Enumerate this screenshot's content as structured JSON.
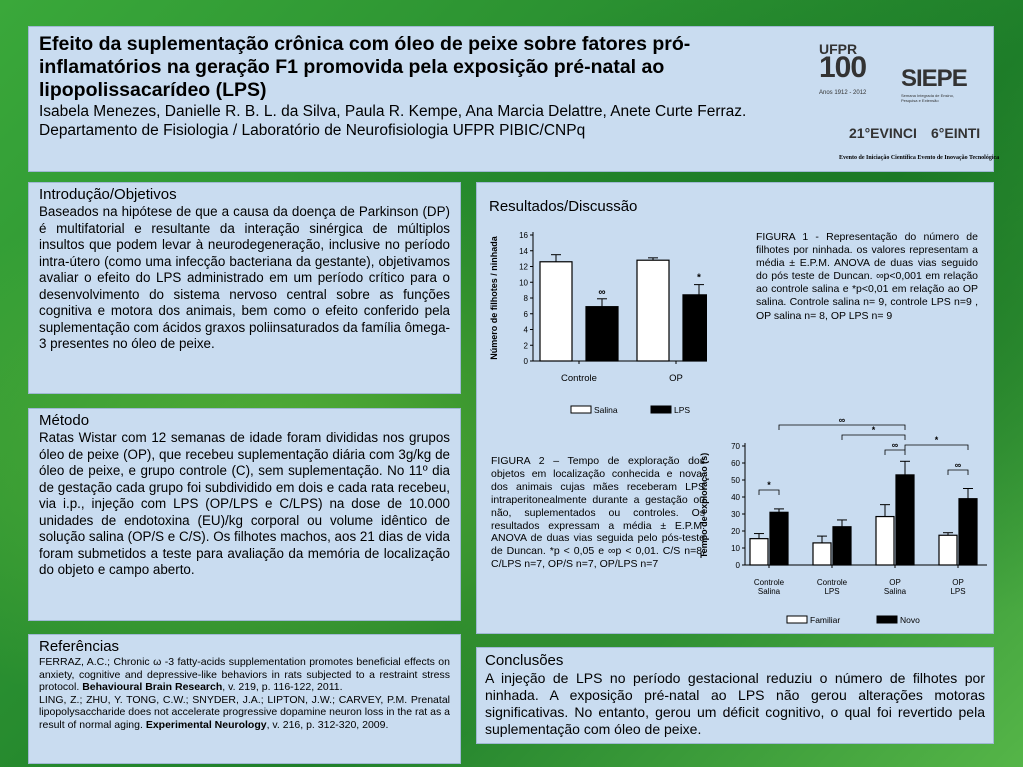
{
  "header": {
    "title": "Efeito da suplementação crônica com óleo de peixe sobre fatores pró-inflamatórios na geração F1 promovida pela exposição pré-natal ao lipopolissacarídeo (LPS)",
    "authors": "Isabela Menezes, Danielle R. B. L. da Silva, Paula R. Kempe, Ana Marcia Delattre, Anete Curte Ferraz. Departamento de Fisiologia / Laboratório de Neurofisiologia UFPR PIBIC/CNPq"
  },
  "logos": {
    "ufpr": "UFPR",
    "ufpr_100": "100",
    "ufpr_sub": "Anos 1912 - 2012",
    "siepe": "SIEPE",
    "siepe_sub": "Semana Integrada de Ensino, Pesquisa e Extensão",
    "evinci": "21°EVINCI",
    "einti": "6°EINTI",
    "caption": "Evento de Iniciação Científica  Evento de Inovação Tecnológica"
  },
  "intro": {
    "title": "Introdução/Objetivos",
    "text": "Baseados na hipótese de que a causa da doença de Parkinson (DP) é multifatorial e resultante da interação sinérgica de múltiplos insultos que podem levar à neurodegeneração, inclusive no período intra-útero (como uma infecção bacteriana da gestante), objetivamos avaliar o efeito do LPS administrado em um período crítico para o desenvolvimento do sistema nervoso central sobre as funções cognitiva e motora dos animais, bem como o efeito conferido pela suplementação com ácidos graxos poliinsaturados da família ômega-3 presentes no óleo de peixe."
  },
  "metodo": {
    "title": "Método",
    "text": "Ratas Wistar com 12 semanas de idade foram divididas nos grupos óleo de peixe (OP), que recebeu suplementação diária com 3g/kg de óleo de peixe, e grupo controle (C), sem suplementação. No 11º dia de gestação cada grupo foi subdividido em dois e cada rata recebeu, via i.p., injeção com LPS (OP/LPS e C/LPS) na dose de 10.000 unidades de endotoxina (EU)/kg corporal ou volume idêntico de solução salina (OP/S e C/S). Os filhotes machos, aos 21 dias de vida foram submetidos a teste para avaliação da memória de localização do objeto e campo aberto."
  },
  "refs": {
    "title": "Referências",
    "ref1_a": "FERRAZ, A.C.; Chronic ω -3 fatty-acids supplementation promotes beneficial effects on anxiety, cognitive and depressive-like behaviors in rats subjected to a restraint stress protocol. ",
    "ref1_journal": "Behavioural Brain Research",
    "ref1_b": ", v. 219, p. 116-122, 2011.",
    "ref2_a": "LING, Z.; ZHU, Y. TONG, C.W.; SNYDER, J.A.; LIPTON, J.W.; CARVEY, P.M. Prenatal lipopolysaccharide does not accelerate progressive dopamine neuron loss in the rat as a result of normal aging. ",
    "ref2_journal": "Experimental Neurology",
    "ref2_b": ", v. 216, p. 312-320, 2009."
  },
  "results": {
    "title": "Resultados/Discussão",
    "fig1_caption": "FIGURA 1 - Representação do número de filhotes por ninhada. os valores representam a média ± E.P.M. ANOVA de duas vias seguido do pós teste de Duncan. ∞p<0,001 em relação ao controle salina e *p<0,01 em relação ao OP salina. Controle salina n= 9, controle LPS n=9 , OP salina n= 8, OP LPS n= 9",
    "fig2_caption": "FIGURA 2 – Tempo de exploração dos objetos em localização conhecida e nova, dos animais cujas mães receberam LPS intraperitonealmente durante a gestação ou não, suplementados ou controles. Os resultados expressam a média ± E.P.M. ANOVA de duas vias seguida pelo pós-teste de Duncan. *p < 0,05 e ∞p < 0,01. C/S n=8, C/LPS n=7, OP/S n=7, OP/LPS n=7"
  },
  "conclusions": {
    "title": "Conclusões",
    "text": "A injeção de LPS no período gestacional reduziu o número de filhotes por ninhada. A exposição pré-natal ao LPS não gerou alterações motoras significativas. No entanto, gerou um déficit cognitivo, o qual foi revertido pela suplementação com óleo de peixe."
  },
  "chart_data": [
    {
      "type": "bar",
      "ylabel": "Número de filhotes / ninhada",
      "ylim": [
        0,
        16
      ],
      "yticks": [
        0,
        2,
        4,
        6,
        8,
        10,
        12,
        14,
        16
      ],
      "categories": [
        "Controle",
        "OP"
      ],
      "series": [
        {
          "name": "Salina",
          "values": [
            12.6,
            12.8
          ],
          "errors": [
            0.9,
            0.3
          ],
          "color": "#ffffff"
        },
        {
          "name": "LPS",
          "values": [
            6.9,
            8.4
          ],
          "errors": [
            1.0,
            1.3
          ],
          "color": "#000000"
        }
      ],
      "annotations": [
        {
          "category": 0,
          "series": 1,
          "symbol": "∞"
        },
        {
          "category": 1,
          "series": 1,
          "symbol": "*"
        }
      ],
      "legend": "bottom"
    },
    {
      "type": "bar",
      "ylabel": "Tempo de exploração (s)",
      "ylim": [
        0,
        70
      ],
      "yticks": [
        0,
        10,
        20,
        30,
        40,
        50,
        60,
        70
      ],
      "categories": [
        "Controle Salina",
        "Controle LPS",
        "OP Salina",
        "OP LPS"
      ],
      "category_lines": [
        [
          "Controle",
          "Salina"
        ],
        [
          "Controle",
          "LPS"
        ],
        [
          "OP",
          "Salina"
        ],
        [
          "OP",
          "LPS"
        ]
      ],
      "series": [
        {
          "name": "Familiar",
          "values": [
            15.5,
            13,
            28.5,
            17.5
          ],
          "errors": [
            3,
            4,
            7,
            1.5
          ],
          "color": "#ffffff"
        },
        {
          "name": "Novo",
          "values": [
            31,
            22.5,
            53,
            39
          ],
          "errors": [
            2,
            4,
            8,
            6
          ],
          "color": "#000000"
        }
      ],
      "brackets": [
        {
          "from": [
            0,
            0
          ],
          "to": [
            0,
            1
          ],
          "symbol": "*"
        },
        {
          "from": [
            2,
            0
          ],
          "to": [
            2,
            1
          ],
          "symbol": "∞"
        },
        {
          "from": [
            3,
            0
          ],
          "to": [
            3,
            1
          ],
          "symbol": "∞"
        },
        {
          "from": [
            2,
            1
          ],
          "to": [
            3,
            1
          ],
          "symbol": "*"
        },
        {
          "from": [
            1,
            1
          ],
          "to": [
            2,
            1
          ],
          "symbol": "*"
        },
        {
          "from": [
            0,
            1
          ],
          "to": [
            2,
            1
          ],
          "symbol": "∞"
        }
      ],
      "legend": "bottom"
    }
  ]
}
